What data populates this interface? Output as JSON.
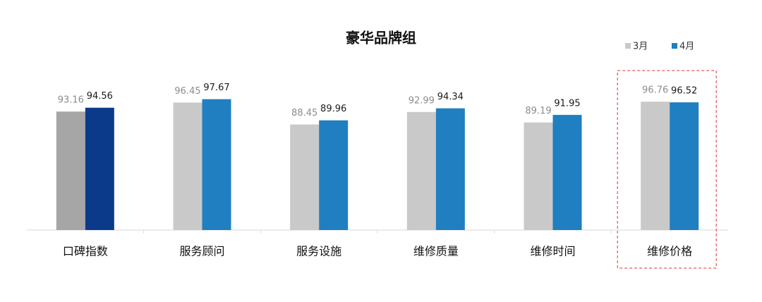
{
  "chart_data": {
    "type": "bar",
    "title": "豪华品牌组",
    "categories": [
      "口碑指数",
      "服务顾问",
      "服务设施",
      "维修质量",
      "维修时间",
      "维修价格"
    ],
    "series": [
      {
        "name": "3月",
        "color": "#c9c9c9",
        "colors": [
          "#a6a6a6",
          "#c9c9c9",
          "#c9c9c9",
          "#c9c9c9",
          "#c9c9c9",
          "#c9c9c9"
        ],
        "label_color": "#8c8c8c",
        "values": [
          93.16,
          96.45,
          88.45,
          92.99,
          89.19,
          96.76
        ]
      },
      {
        "name": "4月",
        "color": "#1f7fc0",
        "colors": [
          "#0c3a8a",
          "#1f7fc0",
          "#1f7fc0",
          "#1f7fc0",
          "#1f7fc0",
          "#1f7fc0"
        ],
        "label_color": "#1a1a1a",
        "values": [
          94.56,
          97.67,
          89.96,
          94.34,
          91.95,
          96.52
        ]
      }
    ],
    "ylim": [
      50,
      100
    ],
    "grid": false,
    "legend": "top-right",
    "highlight_category": 5
  }
}
